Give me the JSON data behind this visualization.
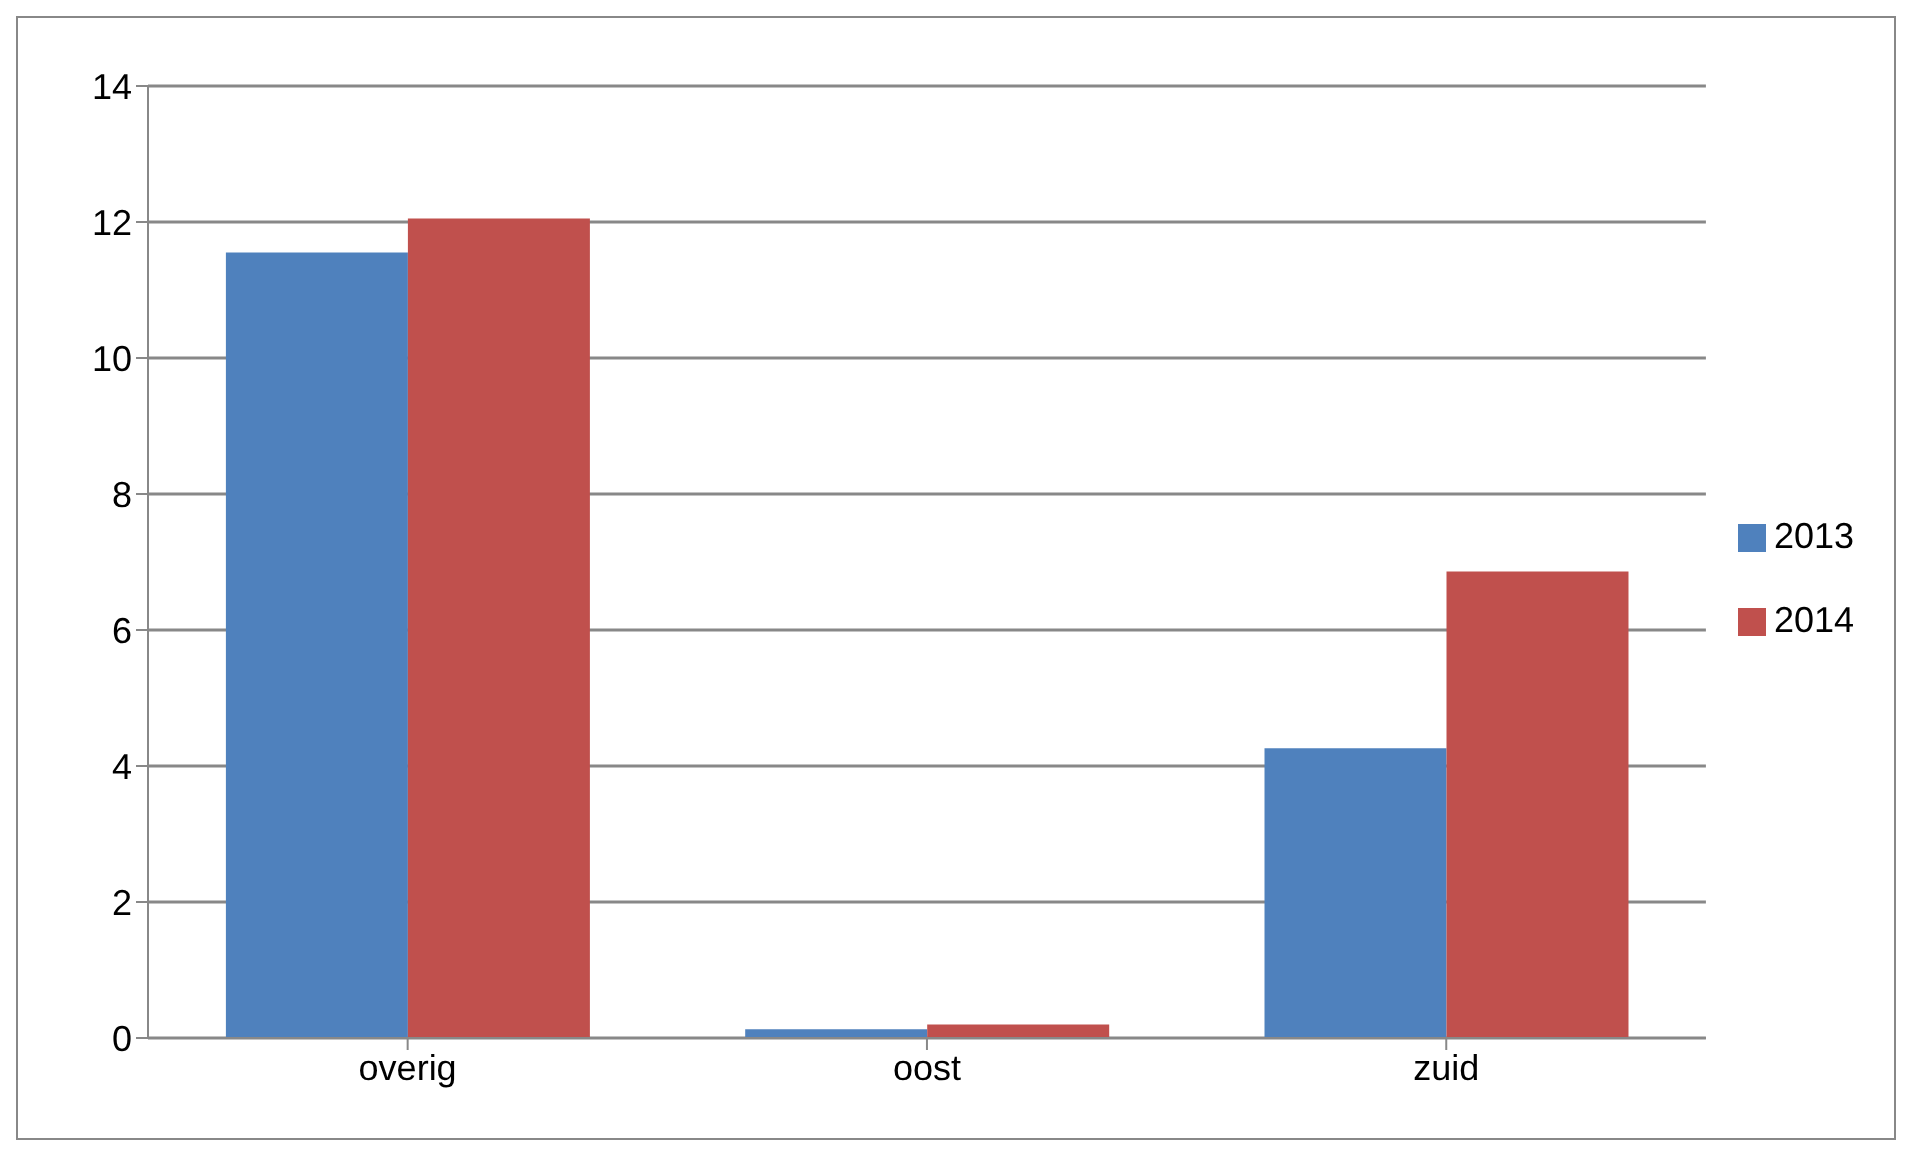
{
  "chart_data": {
    "type": "bar",
    "categories": [
      "overig",
      "oost",
      "zuid"
    ],
    "series": [
      {
        "name": "2013",
        "color": "#4f81bd",
        "values": [
          11.55,
          0.13,
          4.26
        ]
      },
      {
        "name": "2014",
        "color": "#c0504d",
        "values": [
          12.05,
          0.2,
          6.86
        ]
      }
    ],
    "ylim": [
      0,
      14
    ],
    "yticks": [
      0,
      2,
      4,
      6,
      8,
      10,
      12,
      14
    ],
    "grid": "y",
    "legend": "right"
  }
}
